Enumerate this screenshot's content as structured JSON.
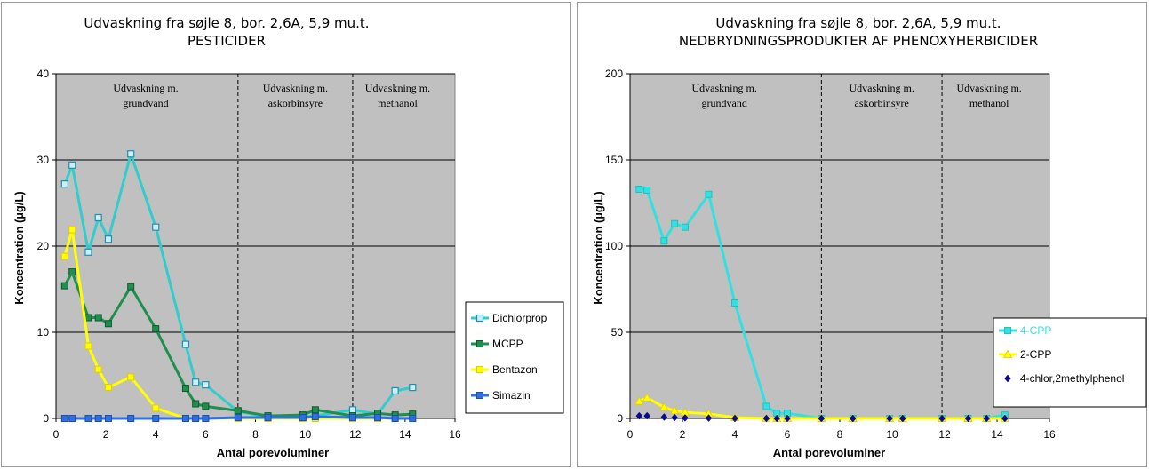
{
  "chart_data": [
    {
      "type": "line",
      "title": "Udvaskning fra søjle 8, bor. 2,6A, 5,9 mu.t.",
      "subtitle": "PESTICIDER",
      "xlabel": "Antal porevoluminer",
      "ylabel": "Koncentration (µg/L)",
      "xlim": [
        0,
        16
      ],
      "ylim": [
        0,
        40
      ],
      "xticks": [
        0,
        2,
        4,
        6,
        8,
        10,
        12,
        14,
        16
      ],
      "yticks": [
        0,
        10,
        20,
        30,
        40
      ],
      "grid": "horizontal",
      "plot_background": "#c0c0c0",
      "legend_position": "right",
      "phase_dividers": [
        7.3,
        11.9
      ],
      "phase_labels": [
        {
          "line1": "Udvaskning m.",
          "line2": "grundvand",
          "x": 3.6
        },
        {
          "line1": "Udvaskning m.",
          "line2": "askorbinsyre",
          "x": 9.6
        },
        {
          "line1": "Udvaskning m.",
          "line2": "methanol",
          "x": 13.7
        }
      ],
      "series": [
        {
          "name": "Dichlorprop",
          "color": "#33cccc",
          "marker": "square-open",
          "line": true,
          "points": [
            [
              0.35,
              27.2
            ],
            [
              0.65,
              29.4
            ],
            [
              1.3,
              19.3
            ],
            [
              1.7,
              23.3
            ],
            [
              2.1,
              20.8
            ],
            [
              3.0,
              30.7
            ],
            [
              4.0,
              22.2
            ],
            [
              5.2,
              8.6
            ],
            [
              5.6,
              4.2
            ],
            [
              6.0,
              3.9
            ],
            [
              7.3,
              0.8
            ],
            [
              8.5,
              0.2
            ],
            [
              9.9,
              0.2
            ],
            [
              10.4,
              0.3
            ],
            [
              11.9,
              1.0
            ],
            [
              12.9,
              0.5
            ],
            [
              13.6,
              3.2
            ],
            [
              14.3,
              3.6
            ]
          ]
        },
        {
          "name": "MCPP",
          "color": "#1f8f4f",
          "marker": "square-filled",
          "marker_edge": "#0b5a2c",
          "line": true,
          "points": [
            [
              0.35,
              15.4
            ],
            [
              0.65,
              17.0
            ],
            [
              1.3,
              11.7
            ],
            [
              1.7,
              11.7
            ],
            [
              2.1,
              11.0
            ],
            [
              3.0,
              15.3
            ],
            [
              4.0,
              10.4
            ],
            [
              5.2,
              3.5
            ],
            [
              5.6,
              1.7
            ],
            [
              6.0,
              1.4
            ],
            [
              7.3,
              0.9
            ],
            [
              8.5,
              0.3
            ],
            [
              9.9,
              0.4
            ],
            [
              10.4,
              1.0
            ],
            [
              11.9,
              0.3
            ],
            [
              12.9,
              0.6
            ],
            [
              13.6,
              0.4
            ],
            [
              14.3,
              0.5
            ]
          ]
        },
        {
          "name": "Bentazon",
          "color": "#ffff00",
          "marker": "square-filled",
          "marker_edge": "#e6c800",
          "line": true,
          "points": [
            [
              0.35,
              18.8
            ],
            [
              0.65,
              21.9
            ],
            [
              1.3,
              8.4
            ],
            [
              1.7,
              5.7
            ],
            [
              2.1,
              3.6
            ],
            [
              3.0,
              4.8
            ],
            [
              4.0,
              1.2
            ],
            [
              5.2,
              0.0
            ],
            [
              5.6,
              0.0
            ],
            [
              6.0,
              0.0
            ],
            [
              7.3,
              0.0
            ],
            [
              8.5,
              0.0
            ],
            [
              9.9,
              0.0
            ],
            [
              10.4,
              0.0
            ],
            [
              11.9,
              0.0
            ],
            [
              12.9,
              0.0
            ],
            [
              13.6,
              0.0
            ],
            [
              14.3,
              0.0
            ]
          ]
        },
        {
          "name": "Simazin",
          "color": "#2f6fe0",
          "marker": "square-filled",
          "marker_edge": "#1a4fb0",
          "line": true,
          "points": [
            [
              0.35,
              0.0
            ],
            [
              0.65,
              0.0
            ],
            [
              1.3,
              0.0
            ],
            [
              1.7,
              0.0
            ],
            [
              2.1,
              0.0
            ],
            [
              3.0,
              0.0
            ],
            [
              4.0,
              0.0
            ],
            [
              5.2,
              0.0
            ],
            [
              5.6,
              0.0
            ],
            [
              6.0,
              0.0
            ],
            [
              7.3,
              0.1
            ],
            [
              8.5,
              0.1
            ],
            [
              9.9,
              0.1
            ],
            [
              10.4,
              0.2
            ],
            [
              11.9,
              0.1
            ],
            [
              12.9,
              0.1
            ],
            [
              13.6,
              0.0
            ],
            [
              14.3,
              0.0
            ]
          ]
        }
      ]
    },
    {
      "type": "line",
      "title": "Udvaskning fra søjle 8, bor. 2,6A, 5,9 mu.t.",
      "subtitle": "NEDBRYDNINGSPRODUKTER AF PHENOXYHERBICIDER",
      "xlabel": "Antal porevoluminer",
      "ylabel": "Koncentration (µg/L)",
      "xlim": [
        0,
        16
      ],
      "ylim": [
        0,
        200
      ],
      "xticks": [
        0,
        2,
        4,
        6,
        8,
        10,
        12,
        14,
        16
      ],
      "yticks": [
        0,
        50,
        100,
        150,
        200
      ],
      "grid": "horizontal",
      "plot_background": "#c0c0c0",
      "legend_position": "right",
      "phase_dividers": [
        7.3,
        11.9
      ],
      "phase_labels": [
        {
          "line1": "Udvaskning m.",
          "line2": "grundvand",
          "x": 3.6
        },
        {
          "line1": "Udvaskning m.",
          "line2": "askorbinsyre",
          "x": 9.6
        },
        {
          "line1": "Udvaskning m.",
          "line2": "methanol",
          "x": 13.7
        }
      ],
      "series": [
        {
          "name": "4-CPP",
          "color": "#33e0e0",
          "marker": "square-filled",
          "marker_edge": "#20c0c0",
          "line": true,
          "legend_text_color": "#33e0e0",
          "points": [
            [
              0.35,
              133
            ],
            [
              0.65,
              132.5
            ],
            [
              1.3,
              103
            ],
            [
              1.7,
              113
            ],
            [
              2.1,
              111
            ],
            [
              3.0,
              130
            ],
            [
              4.0,
              67
            ],
            [
              5.2,
              7
            ],
            [
              5.6,
              3
            ],
            [
              6.0,
              3
            ],
            [
              7.3,
              0
            ],
            [
              8.5,
              0
            ],
            [
              9.9,
              0
            ],
            [
              10.4,
              0
            ],
            [
              11.9,
              0
            ],
            [
              12.9,
              0
            ],
            [
              13.6,
              0
            ],
            [
              14.3,
              2
            ]
          ]
        },
        {
          "name": "2-CPP",
          "color": "#ffff00",
          "marker": "triangle",
          "marker_edge": "#e6c800",
          "line": true,
          "points": [
            [
              0.35,
              10
            ],
            [
              0.65,
              12
            ],
            [
              1.3,
              6.5
            ],
            [
              1.7,
              4.5
            ],
            [
              2.1,
              3.5
            ],
            [
              3.0,
              2.7
            ],
            [
              4.0,
              0.5
            ],
            [
              5.2,
              0
            ],
            [
              5.6,
              0
            ],
            [
              6.0,
              0
            ],
            [
              7.3,
              0
            ],
            [
              8.5,
              0
            ],
            [
              9.9,
              0
            ],
            [
              10.4,
              0
            ],
            [
              11.9,
              0
            ],
            [
              12.9,
              0
            ],
            [
              13.6,
              0
            ],
            [
              14.3,
              0
            ]
          ]
        },
        {
          "name": "4-chlor,2methylphenol",
          "color": "#0a0a8a",
          "marker": "diamond",
          "line": false,
          "points": [
            [
              0.35,
              1.5
            ],
            [
              0.65,
              1.5
            ],
            [
              1.3,
              0.8
            ],
            [
              1.7,
              0.5
            ],
            [
              2.1,
              0.3
            ],
            [
              3.0,
              0.2
            ],
            [
              4.0,
              0
            ],
            [
              5.2,
              0
            ],
            [
              5.6,
              0
            ],
            [
              6.0,
              0
            ],
            [
              7.3,
              0
            ],
            [
              8.5,
              0
            ],
            [
              9.9,
              0
            ],
            [
              10.4,
              0
            ],
            [
              11.9,
              0
            ],
            [
              12.9,
              0
            ],
            [
              13.6,
              0
            ],
            [
              14.3,
              0
            ]
          ]
        }
      ]
    }
  ]
}
